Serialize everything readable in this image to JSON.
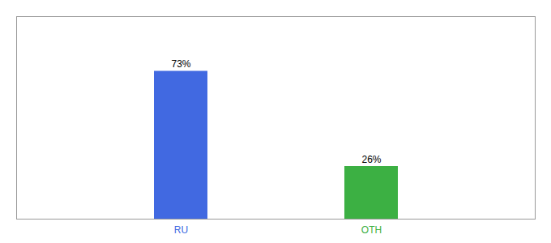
{
  "chart_data": {
    "type": "bar",
    "categories": [
      "RU",
      "OTH"
    ],
    "values": [
      73,
      26
    ],
    "value_labels": [
      "73%",
      "26%"
    ],
    "colors": [
      "#4169e1",
      "#3cb043"
    ],
    "ylim": [
      0,
      100
    ],
    "data_labels": true,
    "tick_labels": "x"
  }
}
